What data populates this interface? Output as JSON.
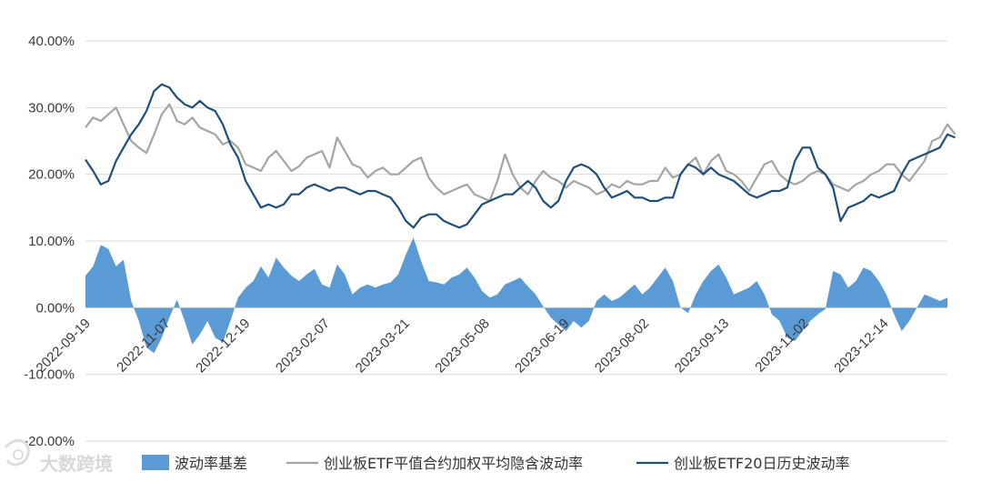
{
  "chart_data": {
    "type": "line",
    "ylim": [
      -0.2,
      0.4
    ],
    "y_ticks": [
      "40.00%",
      "30.00%",
      "20.00%",
      "10.00%",
      "0.00%",
      "-10.00%",
      "-20.00%"
    ],
    "y_tick_values": [
      0.4,
      0.3,
      0.2,
      0.1,
      0.0,
      -0.1,
      -0.2
    ],
    "x_ticks": [
      "2022-09-19",
      "2022-11-07",
      "2022-12-19",
      "2023-02-07",
      "2023-03-21",
      "2023-05-08",
      "2023-06-19",
      "2023-08-02",
      "2023-09-13",
      "2023-11-02",
      "2023-12-14"
    ],
    "grid": "horizontal",
    "legend_position": "bottom",
    "colors": {
      "basis": "#5b9bd5",
      "implied": "#a5a5a5",
      "historical": "#1f4e79"
    },
    "series": [
      {
        "name": "波动率基差",
        "type": "area",
        "color": "#5b9bd5",
        "values": [
          0.048,
          0.062,
          0.094,
          0.088,
          0.062,
          0.072,
          0.01,
          -0.02,
          -0.06,
          -0.068,
          -0.045,
          -0.015,
          0.012,
          -0.02,
          -0.055,
          -0.04,
          -0.02,
          -0.045,
          -0.052,
          -0.02,
          0.015,
          0.03,
          0.04,
          0.062,
          0.045,
          0.075,
          0.06,
          0.048,
          0.04,
          0.05,
          0.058,
          0.035,
          0.03,
          0.065,
          0.05,
          0.02,
          0.03,
          0.035,
          0.03,
          0.035,
          0.038,
          0.05,
          0.08,
          0.105,
          0.07,
          0.04,
          0.038,
          0.035,
          0.045,
          0.05,
          0.06,
          0.045,
          0.025,
          0.015,
          0.02,
          0.035,
          0.04,
          0.045,
          0.032,
          0.02,
          0.002,
          -0.015,
          -0.025,
          -0.035,
          -0.02,
          -0.03,
          -0.02,
          0.01,
          0.02,
          0.01,
          0.015,
          0.025,
          0.035,
          0.02,
          0.03,
          0.045,
          0.06,
          0.04,
          0.0,
          -0.008,
          0.02,
          0.04,
          0.055,
          0.065,
          0.045,
          0.02,
          0.025,
          0.03,
          0.04,
          0.02,
          -0.01,
          -0.02,
          -0.045,
          -0.05,
          -0.035,
          -0.02,
          -0.01,
          -0.002,
          0.055,
          0.05,
          0.03,
          0.04,
          0.06,
          0.055,
          0.04,
          0.02,
          -0.01,
          -0.035,
          -0.02,
          0.0,
          0.02,
          0.015,
          0.01,
          0.015
        ]
      },
      {
        "name": "创业板ETF平值合约加权平均隐含波动率",
        "type": "line",
        "color": "#a5a5a5",
        "values": [
          0.27,
          0.285,
          0.28,
          0.29,
          0.3,
          0.275,
          0.25,
          0.24,
          0.232,
          0.26,
          0.29,
          0.305,
          0.28,
          0.275,
          0.285,
          0.27,
          0.265,
          0.26,
          0.245,
          0.25,
          0.24,
          0.215,
          0.21,
          0.205,
          0.225,
          0.235,
          0.22,
          0.205,
          0.212,
          0.225,
          0.23,
          0.235,
          0.21,
          0.255,
          0.235,
          0.215,
          0.21,
          0.195,
          0.205,
          0.21,
          0.2,
          0.2,
          0.21,
          0.22,
          0.225,
          0.195,
          0.18,
          0.17,
          0.175,
          0.18,
          0.185,
          0.17,
          0.165,
          0.16,
          0.19,
          0.23,
          0.2,
          0.18,
          0.17,
          0.19,
          0.205,
          0.195,
          0.19,
          0.18,
          0.19,
          0.185,
          0.18,
          0.17,
          0.175,
          0.185,
          0.18,
          0.19,
          0.185,
          0.185,
          0.19,
          0.19,
          0.21,
          0.195,
          0.2,
          0.215,
          0.225,
          0.2,
          0.22,
          0.23,
          0.205,
          0.2,
          0.19,
          0.175,
          0.195,
          0.215,
          0.22,
          0.2,
          0.19,
          0.185,
          0.19,
          0.2,
          0.205,
          0.2,
          0.185,
          0.18,
          0.175,
          0.185,
          0.19,
          0.2,
          0.205,
          0.215,
          0.215,
          0.2,
          0.19,
          0.205,
          0.22,
          0.25,
          0.255,
          0.275,
          0.26
        ]
      },
      {
        "name": "创业板ETF20日历史波动率",
        "type": "line",
        "color": "#1f4e79",
        "values": [
          0.222,
          0.205,
          0.185,
          0.19,
          0.22,
          0.24,
          0.26,
          0.275,
          0.295,
          0.325,
          0.335,
          0.33,
          0.315,
          0.305,
          0.3,
          0.31,
          0.3,
          0.295,
          0.275,
          0.245,
          0.225,
          0.19,
          0.17,
          0.15,
          0.155,
          0.15,
          0.155,
          0.17,
          0.17,
          0.18,
          0.185,
          0.18,
          0.175,
          0.18,
          0.18,
          0.175,
          0.17,
          0.175,
          0.175,
          0.17,
          0.165,
          0.15,
          0.13,
          0.12,
          0.135,
          0.14,
          0.14,
          0.13,
          0.125,
          0.12,
          0.125,
          0.14,
          0.155,
          0.16,
          0.165,
          0.17,
          0.17,
          0.18,
          0.19,
          0.18,
          0.16,
          0.15,
          0.16,
          0.19,
          0.21,
          0.215,
          0.21,
          0.2,
          0.18,
          0.165,
          0.17,
          0.175,
          0.165,
          0.165,
          0.16,
          0.16,
          0.165,
          0.165,
          0.2,
          0.215,
          0.21,
          0.2,
          0.21,
          0.2,
          0.195,
          0.19,
          0.18,
          0.17,
          0.165,
          0.17,
          0.175,
          0.175,
          0.18,
          0.22,
          0.24,
          0.24,
          0.21,
          0.2,
          0.18,
          0.13,
          0.15,
          0.155,
          0.16,
          0.17,
          0.165,
          0.17,
          0.175,
          0.2,
          0.22,
          0.225,
          0.23,
          0.235,
          0.24,
          0.26,
          0.255
        ]
      }
    ]
  },
  "legend": [
    {
      "label": "波动率基差",
      "swatch": "area",
      "color": "#5b9bd5"
    },
    {
      "label": "创业板ETF平值合约加权平均隐含波动率",
      "swatch": "line",
      "color": "#a5a5a5"
    },
    {
      "label": "创业板ETF20日历史波动率",
      "swatch": "line",
      "color": "#1f4e79"
    }
  ],
  "watermark": {
    "text": "大数跨境",
    "icon": "logo-icon"
  }
}
